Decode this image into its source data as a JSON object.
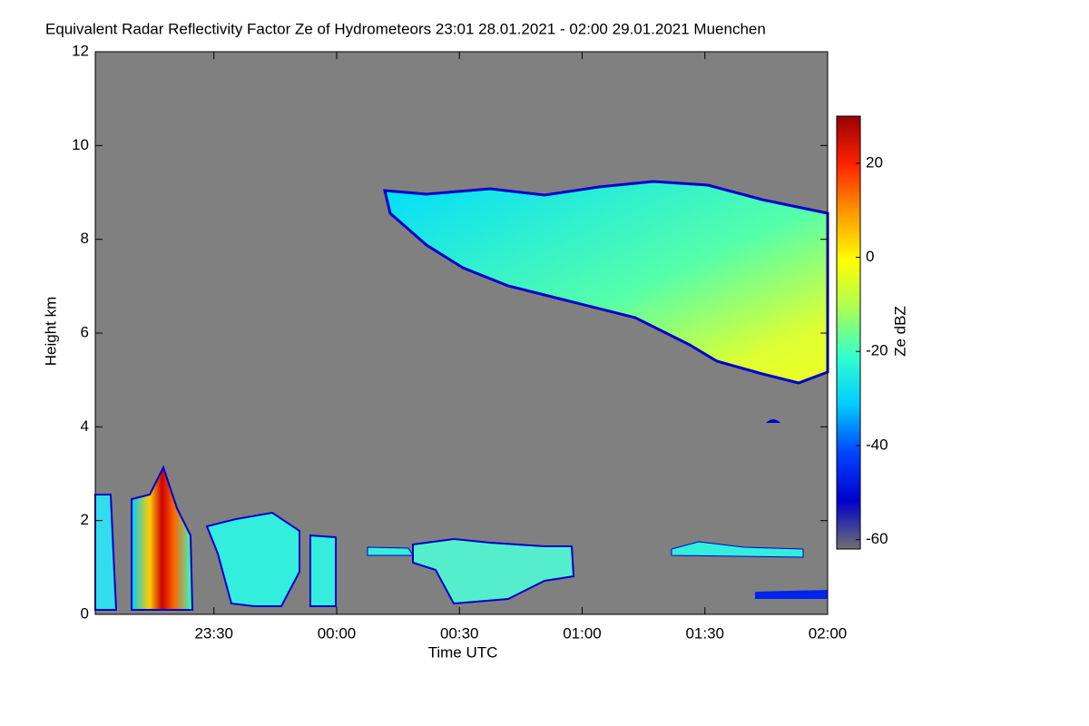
{
  "chart_data": {
    "type": "heatmap",
    "title": "Equivalent Radar Reflectivity Factor Ze of Hydrometeors   23:01 28.01.2021 - 02:00 29.01.2021 Muenchen",
    "x_label": "Time UTC",
    "y_label": "Height km",
    "colorbar_label": "Ze dBZ",
    "xlim": [
      "2021-01-28T23:01",
      "2021-01-29T02:00"
    ],
    "xticks": [
      {
        "value": "2021-01-28T23:30",
        "label": "23:30"
      },
      {
        "value": "2021-01-29T00:00",
        "label": "00:00"
      },
      {
        "value": "2021-01-29T00:30",
        "label": "00:30"
      },
      {
        "value": "2021-01-29T01:00",
        "label": "01:00"
      },
      {
        "value": "2021-01-29T01:30",
        "label": "01:30"
      },
      {
        "value": "2021-01-29T02:00",
        "label": "02:00"
      }
    ],
    "ylim": [
      0,
      12
    ],
    "yticks": [
      0,
      2,
      4,
      6,
      8,
      10,
      12
    ],
    "zlim": [
      -62,
      30
    ],
    "zticks": [
      -60,
      -40,
      -20,
      0,
      20
    ],
    "background_color": "#808080",
    "colormap": [
      "#707070",
      "#0000cc",
      "#0044ff",
      "#00ccff",
      "#33ffcc",
      "#aaff55",
      "#ffff00",
      "#ff9900",
      "#ff2200",
      "#990000"
    ]
  }
}
